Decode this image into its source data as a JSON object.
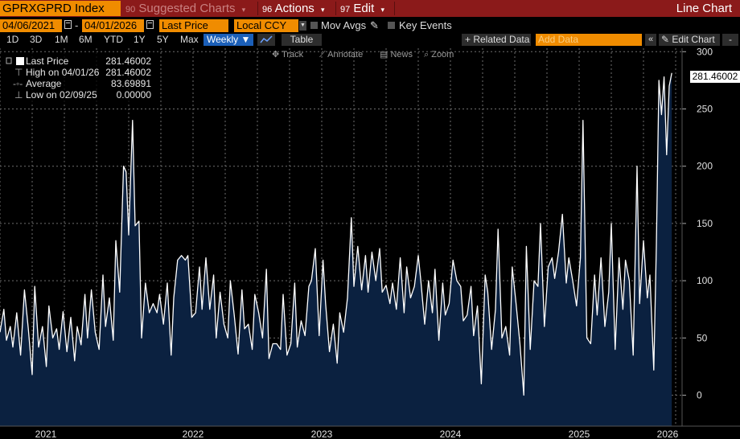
{
  "header": {
    "ticker": "GPRXGPRD Index",
    "suggested": {
      "num": "90",
      "label": "Suggested Charts"
    },
    "actions": {
      "num": "96",
      "label": "Actions"
    },
    "edit": {
      "num": "97",
      "label": "Edit"
    },
    "title": "Line Chart"
  },
  "settings": {
    "start_date": "04/06/2021",
    "date_sep": "-",
    "end_date": "04/01/2026",
    "field": "Last Price",
    "currency": "Local CCY",
    "mov_avgs": "Mov Avgs",
    "key_events": "Key Events"
  },
  "toolbar": {
    "periods": [
      "1D",
      "3D",
      "1M",
      "6M",
      "YTD",
      "1Y",
      "5Y",
      "Max"
    ],
    "frequency": "Weekly",
    "table": "Table",
    "related": "Related Data",
    "add_data_placeholder": "Add Data",
    "edit_chart": "Edit Chart",
    "collapse": "«",
    "zoom_out": "-"
  },
  "tools": {
    "track": "Track",
    "annotate": "Annotate",
    "news": "News",
    "zoom": "Zoom"
  },
  "legend": {
    "rows": [
      {
        "label": "Last Price",
        "value": "281.46002"
      },
      {
        "label": "High on 04/01/26",
        "value": "281.46002"
      },
      {
        "label": "Average",
        "value": "83.69891"
      },
      {
        "label": "Low on 02/09/25",
        "value": "0.00000"
      }
    ]
  },
  "last_value_tag": "281.46002",
  "colors": {
    "accent": "#f08c00",
    "header_bg": "#8b1a1a",
    "line": "#ffffff",
    "area_fill": "#0b2140",
    "grid": "#6e6e6e",
    "selected": "#1b5fb8"
  },
  "chart_data": {
    "type": "area",
    "title": "GPRXGPRD Index",
    "xlabel": "",
    "ylabel": "",
    "x_tick_labels": [
      "2021",
      "2022",
      "2023",
      "2024",
      "2025",
      "2026"
    ],
    "y_tick_labels": [
      "0",
      "50",
      "100",
      "150",
      "200",
      "250",
      "300"
    ],
    "ylim": [
      -27,
      303
    ],
    "x_range": [
      2021.0,
      2026.3
    ],
    "grid": true,
    "frequency": "weekly",
    "series": [
      {
        "name": "Last Price",
        "points": [
          [
            2021.0,
            55
          ],
          [
            2021.03,
            75
          ],
          [
            2021.05,
            48
          ],
          [
            2021.08,
            60
          ],
          [
            2021.1,
            42
          ],
          [
            2021.13,
            72
          ],
          [
            2021.16,
            35
          ],
          [
            2021.19,
            92
          ],
          [
            2021.22,
            58
          ],
          [
            2021.25,
            18
          ],
          [
            2021.27,
            95
          ],
          [
            2021.3,
            42
          ],
          [
            2021.33,
            60
          ],
          [
            2021.36,
            25
          ],
          [
            2021.38,
            78
          ],
          [
            2021.41,
            50
          ],
          [
            2021.44,
            58
          ],
          [
            2021.46,
            40
          ],
          [
            2021.49,
            73
          ],
          [
            2021.52,
            38
          ],
          [
            2021.55,
            68
          ],
          [
            2021.58,
            30
          ],
          [
            2021.6,
            60
          ],
          [
            2021.63,
            44
          ],
          [
            2021.66,
            88
          ],
          [
            2021.68,
            50
          ],
          [
            2021.71,
            92
          ],
          [
            2021.74,
            55
          ],
          [
            2021.77,
            40
          ],
          [
            2021.8,
            105
          ],
          [
            2021.82,
            60
          ],
          [
            2021.85,
            85
          ],
          [
            2021.88,
            48
          ],
          [
            2021.9,
            135
          ],
          [
            2021.93,
            90
          ],
          [
            2021.96,
            200
          ],
          [
            2021.98,
            195
          ],
          [
            2022.0,
            140
          ],
          [
            2022.03,
            240
          ],
          [
            2022.05,
            148
          ],
          [
            2022.08,
            152
          ],
          [
            2022.1,
            50
          ],
          [
            2022.13,
            98
          ],
          [
            2022.16,
            72
          ],
          [
            2022.19,
            80
          ],
          [
            2022.22,
            72
          ],
          [
            2022.24,
            88
          ],
          [
            2022.27,
            62
          ],
          [
            2022.3,
            98
          ],
          [
            2022.33,
            35
          ],
          [
            2022.35,
            85
          ],
          [
            2022.38,
            118
          ],
          [
            2022.41,
            122
          ],
          [
            2022.44,
            118
          ],
          [
            2022.46,
            122
          ],
          [
            2022.49,
            68
          ],
          [
            2022.52,
            72
          ],
          [
            2022.55,
            112
          ],
          [
            2022.57,
            75
          ],
          [
            2022.6,
            120
          ],
          [
            2022.63,
            75
          ],
          [
            2022.66,
            105
          ],
          [
            2022.68,
            50
          ],
          [
            2022.71,
            90
          ],
          [
            2022.74,
            62
          ],
          [
            2022.77,
            50
          ],
          [
            2022.79,
            100
          ],
          [
            2022.82,
            70
          ],
          [
            2022.85,
            36
          ],
          [
            2022.88,
            92
          ],
          [
            2022.9,
            58
          ],
          [
            2022.93,
            62
          ],
          [
            2022.96,
            40
          ],
          [
            2022.98,
            88
          ],
          [
            2023.01,
            72
          ],
          [
            2023.04,
            50
          ],
          [
            2023.07,
            110
          ],
          [
            2023.09,
            32
          ],
          [
            2023.12,
            45
          ],
          [
            2023.15,
            45
          ],
          [
            2023.18,
            40
          ],
          [
            2023.2,
            88
          ],
          [
            2023.23,
            35
          ],
          [
            2023.26,
            45
          ],
          [
            2023.29,
            98
          ],
          [
            2023.31,
            42
          ],
          [
            2023.34,
            65
          ],
          [
            2023.37,
            52
          ],
          [
            2023.4,
            95
          ],
          [
            2023.42,
            100
          ],
          [
            2023.45,
            128
          ],
          [
            2023.48,
            52
          ],
          [
            2023.51,
            118
          ],
          [
            2023.53,
            80
          ],
          [
            2023.56,
            38
          ],
          [
            2023.59,
            62
          ],
          [
            2023.62,
            28
          ],
          [
            2023.64,
            72
          ],
          [
            2023.67,
            55
          ],
          [
            2023.7,
            85
          ],
          [
            2023.73,
            155
          ],
          [
            2023.75,
            95
          ],
          [
            2023.78,
            130
          ],
          [
            2023.81,
            92
          ],
          [
            2023.84,
            122
          ],
          [
            2023.86,
            90
          ],
          [
            2023.89,
            125
          ],
          [
            2023.92,
            100
          ],
          [
            2023.95,
            128
          ],
          [
            2023.97,
            90
          ],
          [
            2024.0,
            96
          ],
          [
            2024.03,
            80
          ],
          [
            2024.05,
            98
          ],
          [
            2024.08,
            75
          ],
          [
            2024.11,
            120
          ],
          [
            2024.14,
            72
          ],
          [
            2024.16,
            112
          ],
          [
            2024.19,
            85
          ],
          [
            2024.22,
            95
          ],
          [
            2024.25,
            122
          ],
          [
            2024.27,
            100
          ],
          [
            2024.3,
            62
          ],
          [
            2024.33,
            100
          ],
          [
            2024.36,
            72
          ],
          [
            2024.38,
            110
          ],
          [
            2024.41,
            48
          ],
          [
            2024.44,
            98
          ],
          [
            2024.46,
            70
          ],
          [
            2024.49,
            80
          ],
          [
            2024.52,
            118
          ],
          [
            2024.55,
            100
          ],
          [
            2024.58,
            95
          ],
          [
            2024.6,
            65
          ],
          [
            2024.63,
            70
          ],
          [
            2024.66,
            95
          ],
          [
            2024.68,
            52
          ],
          [
            2024.71,
            78
          ],
          [
            2024.74,
            10
          ],
          [
            2024.77,
            105
          ],
          [
            2024.79,
            90
          ],
          [
            2024.82,
            40
          ],
          [
            2024.85,
            75
          ],
          [
            2024.87,
            145
          ],
          [
            2024.9,
            50
          ],
          [
            2024.93,
            60
          ],
          [
            2024.96,
            35
          ],
          [
            2024.98,
            112
          ],
          [
            2025.01,
            80
          ],
          [
            2025.04,
            45
          ],
          [
            2025.07,
            0
          ],
          [
            2025.09,
            130
          ],
          [
            2025.12,
            40
          ],
          [
            2025.15,
            100
          ],
          [
            2025.18,
            95
          ],
          [
            2025.2,
            150
          ],
          [
            2025.23,
            60
          ],
          [
            2025.26,
            112
          ],
          [
            2025.29,
            120
          ],
          [
            2025.31,
            102
          ],
          [
            2025.34,
            125
          ],
          [
            2025.37,
            158
          ],
          [
            2025.4,
            98
          ],
          [
            2025.42,
            120
          ],
          [
            2025.45,
            100
          ],
          [
            2025.48,
            78
          ],
          [
            2025.51,
            120
          ],
          [
            2025.53,
            240
          ],
          [
            2025.56,
            50
          ],
          [
            2025.59,
            45
          ],
          [
            2025.62,
            105
          ],
          [
            2025.64,
            70
          ],
          [
            2025.67,
            120
          ],
          [
            2025.7,
            60
          ],
          [
            2025.73,
            90
          ],
          [
            2025.75,
            150
          ],
          [
            2025.78,
            40
          ],
          [
            2025.81,
            120
          ],
          [
            2025.84,
            75
          ],
          [
            2025.86,
            118
          ],
          [
            2025.89,
            100
          ],
          [
            2025.92,
            35
          ],
          [
            2025.95,
            200
          ],
          [
            2025.97,
            80
          ],
          [
            2026.0,
            135
          ],
          [
            2026.03,
            85
          ],
          [
            2026.05,
            105
          ],
          [
            2026.08,
            22
          ],
          [
            2026.1,
            130
          ],
          [
            2026.12,
            275
          ],
          [
            2026.14,
            245
          ],
          [
            2026.16,
            278
          ],
          [
            2026.18,
            210
          ],
          [
            2026.2,
            270
          ],
          [
            2026.22,
            281.46
          ]
        ]
      }
    ]
  }
}
